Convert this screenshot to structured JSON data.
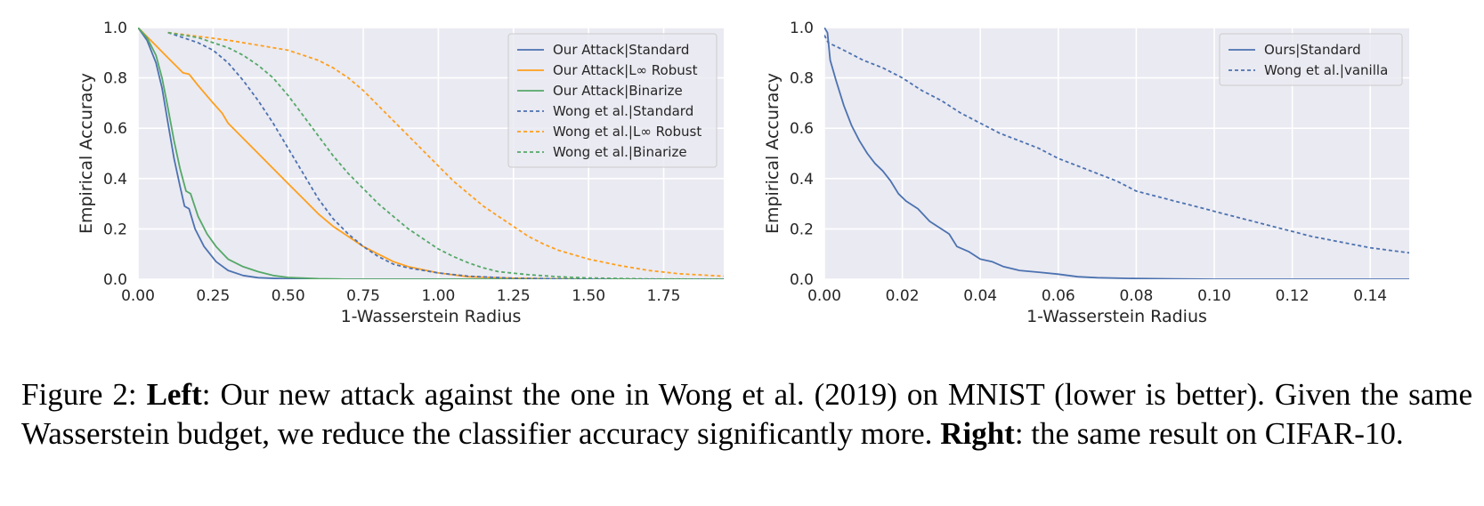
{
  "chart_data": [
    {
      "type": "line",
      "xlabel": "1-Wasserstein Radius",
      "ylabel": "Empirical Accuracy",
      "xlim": [
        0,
        1.95
      ],
      "ylim": [
        0,
        1.0
      ],
      "xticks": [
        "0.00",
        "0.25",
        "0.50",
        "0.75",
        "1.00",
        "1.25",
        "1.50",
        "1.75"
      ],
      "yticks": [
        "0.0",
        "0.2",
        "0.4",
        "0.6",
        "0.8",
        "1.0"
      ],
      "grid": true,
      "legend_position": "top-right",
      "series": [
        {
          "name": "Our Attack|Standard",
          "color": "#4c72b0",
          "style": "solid",
          "points": [
            [
              0,
              1.0
            ],
            [
              0.03,
              0.95
            ],
            [
              0.06,
              0.86
            ],
            [
              0.08,
              0.76
            ],
            [
              0.1,
              0.62
            ],
            [
              0.12,
              0.48
            ],
            [
              0.14,
              0.37
            ],
            [
              0.155,
              0.29
            ],
            [
              0.17,
              0.28
            ],
            [
              0.19,
              0.2
            ],
            [
              0.22,
              0.13
            ],
            [
              0.26,
              0.07
            ],
            [
              0.3,
              0.035
            ],
            [
              0.35,
              0.015
            ],
            [
              0.4,
              0.006
            ],
            [
              0.5,
              0.001
            ],
            [
              0.6,
              0.0
            ],
            [
              1.95,
              0.0
            ]
          ]
        },
        {
          "name": "Our Attack|L∞ Robust",
          "color": "#ff9f1c",
          "style": "solid",
          "points": [
            [
              0,
              1.0
            ],
            [
              0.05,
              0.94
            ],
            [
              0.1,
              0.88
            ],
            [
              0.15,
              0.82
            ],
            [
              0.17,
              0.815
            ],
            [
              0.2,
              0.77
            ],
            [
              0.25,
              0.7
            ],
            [
              0.28,
              0.66
            ],
            [
              0.3,
              0.62
            ],
            [
              0.35,
              0.56
            ],
            [
              0.4,
              0.5
            ],
            [
              0.45,
              0.44
            ],
            [
              0.5,
              0.38
            ],
            [
              0.55,
              0.32
            ],
            [
              0.6,
              0.26
            ],
            [
              0.65,
              0.21
            ],
            [
              0.7,
              0.17
            ],
            [
              0.75,
              0.13
            ],
            [
              0.8,
              0.1
            ],
            [
              0.85,
              0.07
            ],
            [
              0.9,
              0.05
            ],
            [
              1.0,
              0.025
            ],
            [
              1.1,
              0.01
            ],
            [
              1.25,
              0.004
            ],
            [
              1.5,
              0.0
            ],
            [
              1.95,
              0.0
            ]
          ]
        },
        {
          "name": "Our Attack|Binarize",
          "color": "#55a868",
          "style": "solid",
          "points": [
            [
              0,
              1.0
            ],
            [
              0.03,
              0.96
            ],
            [
              0.06,
              0.89
            ],
            [
              0.08,
              0.8
            ],
            [
              0.1,
              0.68
            ],
            [
              0.12,
              0.55
            ],
            [
              0.14,
              0.44
            ],
            [
              0.16,
              0.35
            ],
            [
              0.175,
              0.34
            ],
            [
              0.2,
              0.25
            ],
            [
              0.23,
              0.18
            ],
            [
              0.26,
              0.13
            ],
            [
              0.3,
              0.08
            ],
            [
              0.35,
              0.05
            ],
            [
              0.4,
              0.03
            ],
            [
              0.45,
              0.015
            ],
            [
              0.5,
              0.007
            ],
            [
              0.6,
              0.002
            ],
            [
              0.7,
              0.0
            ],
            [
              1.95,
              0.0
            ]
          ]
        },
        {
          "name": "Wong et al.|Standard",
          "color": "#4c72b0",
          "style": "dashed",
          "points": [
            [
              0.1,
              0.98
            ],
            [
              0.15,
              0.96
            ],
            [
              0.2,
              0.94
            ],
            [
              0.25,
              0.91
            ],
            [
              0.3,
              0.86
            ],
            [
              0.35,
              0.79
            ],
            [
              0.4,
              0.71
            ],
            [
              0.45,
              0.62
            ],
            [
              0.5,
              0.52
            ],
            [
              0.55,
              0.42
            ],
            [
              0.6,
              0.32
            ],
            [
              0.65,
              0.24
            ],
            [
              0.7,
              0.18
            ],
            [
              0.75,
              0.13
            ],
            [
              0.8,
              0.09
            ],
            [
              0.85,
              0.06
            ],
            [
              0.9,
              0.045
            ],
            [
              1.0,
              0.025
            ],
            [
              1.1,
              0.012
            ],
            [
              1.25,
              0.004
            ],
            [
              1.5,
              0.0
            ],
            [
              1.95,
              0.0
            ]
          ]
        },
        {
          "name": "Wong et al.|L∞ Robust",
          "color": "#ff9f1c",
          "style": "dashed",
          "points": [
            [
              0.1,
              0.98
            ],
            [
              0.2,
              0.965
            ],
            [
              0.3,
              0.95
            ],
            [
              0.4,
              0.93
            ],
            [
              0.5,
              0.91
            ],
            [
              0.55,
              0.89
            ],
            [
              0.6,
              0.87
            ],
            [
              0.65,
              0.84
            ],
            [
              0.7,
              0.8
            ],
            [
              0.75,
              0.75
            ],
            [
              0.8,
              0.69
            ],
            [
              0.85,
              0.63
            ],
            [
              0.9,
              0.57
            ],
            [
              0.95,
              0.51
            ],
            [
              1.0,
              0.45
            ],
            [
              1.05,
              0.39
            ],
            [
              1.1,
              0.34
            ],
            [
              1.15,
              0.29
            ],
            [
              1.2,
              0.25
            ],
            [
              1.25,
              0.21
            ],
            [
              1.3,
              0.17
            ],
            [
              1.35,
              0.14
            ],
            [
              1.4,
              0.115
            ],
            [
              1.5,
              0.08
            ],
            [
              1.6,
              0.055
            ],
            [
              1.7,
              0.035
            ],
            [
              1.8,
              0.022
            ],
            [
              1.95,
              0.012
            ]
          ]
        },
        {
          "name": "Wong et al.|Binarize",
          "color": "#55a868",
          "style": "dashed",
          "points": [
            [
              0.1,
              0.98
            ],
            [
              0.15,
              0.97
            ],
            [
              0.2,
              0.96
            ],
            [
              0.25,
              0.94
            ],
            [
              0.3,
              0.92
            ],
            [
              0.35,
              0.89
            ],
            [
              0.4,
              0.85
            ],
            [
              0.45,
              0.8
            ],
            [
              0.5,
              0.73
            ],
            [
              0.55,
              0.65
            ],
            [
              0.6,
              0.57
            ],
            [
              0.65,
              0.49
            ],
            [
              0.7,
              0.42
            ],
            [
              0.75,
              0.36
            ],
            [
              0.8,
              0.3
            ],
            [
              0.85,
              0.25
            ],
            [
              0.9,
              0.2
            ],
            [
              0.95,
              0.16
            ],
            [
              1.0,
              0.12
            ],
            [
              1.05,
              0.09
            ],
            [
              1.1,
              0.065
            ],
            [
              1.15,
              0.045
            ],
            [
              1.2,
              0.03
            ],
            [
              1.3,
              0.018
            ],
            [
              1.4,
              0.01
            ],
            [
              1.5,
              0.005
            ],
            [
              1.7,
              0.001
            ],
            [
              1.95,
              0.0
            ]
          ]
        }
      ]
    },
    {
      "type": "line",
      "xlabel": "1-Wasserstein Radius",
      "ylabel": "Empirical Accuracy",
      "xlim": [
        0,
        0.15
      ],
      "ylim": [
        0,
        1.0
      ],
      "xticks": [
        "0.00",
        "0.02",
        "0.04",
        "0.06",
        "0.08",
        "0.10",
        "0.12",
        "0.14"
      ],
      "yticks": [
        "0.0",
        "0.2",
        "0.4",
        "0.6",
        "0.8",
        "1.0"
      ],
      "grid": true,
      "legend_position": "top-right",
      "series": [
        {
          "name": "Ours|Standard",
          "color": "#4c72b0",
          "style": "solid",
          "points": [
            [
              0.0,
              1.0
            ],
            [
              0.0008,
              0.98
            ],
            [
              0.0015,
              0.87
            ],
            [
              0.003,
              0.79
            ],
            [
              0.005,
              0.69
            ],
            [
              0.007,
              0.61
            ],
            [
              0.009,
              0.55
            ],
            [
              0.011,
              0.5
            ],
            [
              0.013,
              0.46
            ],
            [
              0.015,
              0.43
            ],
            [
              0.017,
              0.39
            ],
            [
              0.019,
              0.34
            ],
            [
              0.021,
              0.31
            ],
            [
              0.024,
              0.28
            ],
            [
              0.027,
              0.23
            ],
            [
              0.03,
              0.2
            ],
            [
              0.032,
              0.18
            ],
            [
              0.034,
              0.13
            ],
            [
              0.037,
              0.11
            ],
            [
              0.04,
              0.08
            ],
            [
              0.043,
              0.07
            ],
            [
              0.046,
              0.05
            ],
            [
              0.05,
              0.035
            ],
            [
              0.055,
              0.028
            ],
            [
              0.06,
              0.02
            ],
            [
              0.065,
              0.01
            ],
            [
              0.07,
              0.006
            ],
            [
              0.08,
              0.003
            ],
            [
              0.09,
              0.001
            ],
            [
              0.1,
              0.0
            ],
            [
              0.15,
              0.0
            ]
          ]
        },
        {
          "name": "Wong et al.|vanilla",
          "color": "#4c72b0",
          "style": "dashed",
          "points": [
            [
              0.0,
              0.97
            ],
            [
              0.001,
              0.94
            ],
            [
              0.005,
              0.91
            ],
            [
              0.01,
              0.87
            ],
            [
              0.015,
              0.84
            ],
            [
              0.02,
              0.8
            ],
            [
              0.025,
              0.75
            ],
            [
              0.03,
              0.71
            ],
            [
              0.035,
              0.66
            ],
            [
              0.04,
              0.62
            ],
            [
              0.045,
              0.58
            ],
            [
              0.05,
              0.55
            ],
            [
              0.055,
              0.52
            ],
            [
              0.06,
              0.48
            ],
            [
              0.065,
              0.45
            ],
            [
              0.07,
              0.42
            ],
            [
              0.075,
              0.39
            ],
            [
              0.08,
              0.35
            ],
            [
              0.085,
              0.33
            ],
            [
              0.09,
              0.31
            ],
            [
              0.095,
              0.29
            ],
            [
              0.1,
              0.27
            ],
            [
              0.105,
              0.25
            ],
            [
              0.11,
              0.23
            ],
            [
              0.115,
              0.21
            ],
            [
              0.12,
              0.19
            ],
            [
              0.125,
              0.17
            ],
            [
              0.13,
              0.155
            ],
            [
              0.135,
              0.14
            ],
            [
              0.14,
              0.125
            ],
            [
              0.145,
              0.115
            ],
            [
              0.15,
              0.105
            ]
          ]
        }
      ]
    }
  ],
  "caption": {
    "prefix": "Figure 2: ",
    "left_label": "Left",
    "left_text": ": Our new attack against the one in Wong et al. (2019) on MNIST (lower is better). Given the same Wasserstein budget, we reduce the classifier accuracy significantly more. ",
    "right_label": "Right",
    "right_text": ": the same result on CIFAR-10."
  }
}
